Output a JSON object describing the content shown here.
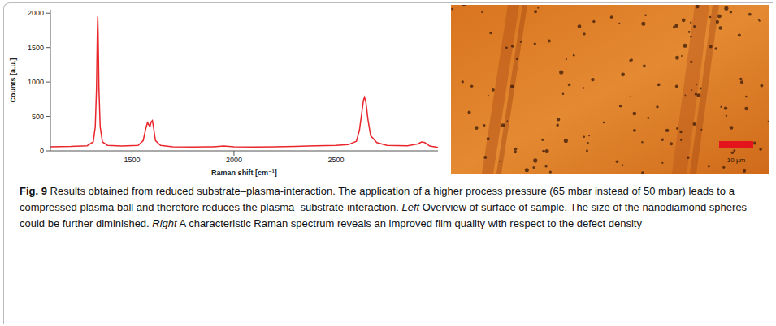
{
  "chart_data": {
    "type": "line",
    "x_label": "Raman shift [cm⁻¹]",
    "y_label": "Counts [a.u.]",
    "x": [
      1100,
      1200,
      1280,
      1310,
      1320,
      1326,
      1330,
      1332,
      1334,
      1338,
      1344,
      1355,
      1380,
      1450,
      1530,
      1555,
      1568,
      1576,
      1582,
      1588,
      1594,
      1600,
      1606,
      1615,
      1640,
      1700,
      1800,
      1900,
      1950,
      2000,
      2100,
      2200,
      2300,
      2400,
      2500,
      2560,
      2600,
      2615,
      2625,
      2635,
      2640,
      2647,
      2657,
      2670,
      2700,
      2750,
      2850,
      2900,
      2920,
      2935,
      2960,
      3000
    ],
    "values": [
      60,
      65,
      75,
      130,
      350,
      900,
      1700,
      1950,
      1700,
      900,
      350,
      130,
      80,
      70,
      80,
      150,
      330,
      410,
      380,
      350,
      420,
      440,
      330,
      150,
      80,
      60,
      55,
      60,
      70,
      60,
      55,
      60,
      65,
      75,
      80,
      90,
      140,
      300,
      520,
      740,
      780,
      700,
      450,
      220,
      120,
      80,
      75,
      100,
      130,
      120,
      70,
      50
    ],
    "color": "#e8262b",
    "xlim": [
      1100,
      3000
    ],
    "xticks": [
      1500,
      2000,
      2500
    ],
    "ylim": [
      0,
      2050
    ],
    "yticks": [
      0,
      500,
      1000,
      1500,
      2000
    ],
    "grid": false
  },
  "micrograph": {
    "scale_bar": "10 µm"
  },
  "caption": {
    "label": "Fig. 9",
    "parts": [
      {
        "text": "Results obtained from reduced substrate–plasma-interaction. The application of a higher process pressure (65 mbar instead of 50 mbar) leads to a compressed plasma ball and therefore reduces the plasma–substrate-interaction.",
        "italic": false
      },
      {
        "text": "Left",
        "italic": true
      },
      {
        "text": "Overview of surface of sample. The size of the nanodiamond spheres could be further diminished.",
        "italic": false
      },
      {
        "text": "Right",
        "italic": true
      },
      {
        "text": "A characteristic Raman spectrum reveals an improved film quality with respect to the defect density",
        "italic": false
      }
    ]
  }
}
